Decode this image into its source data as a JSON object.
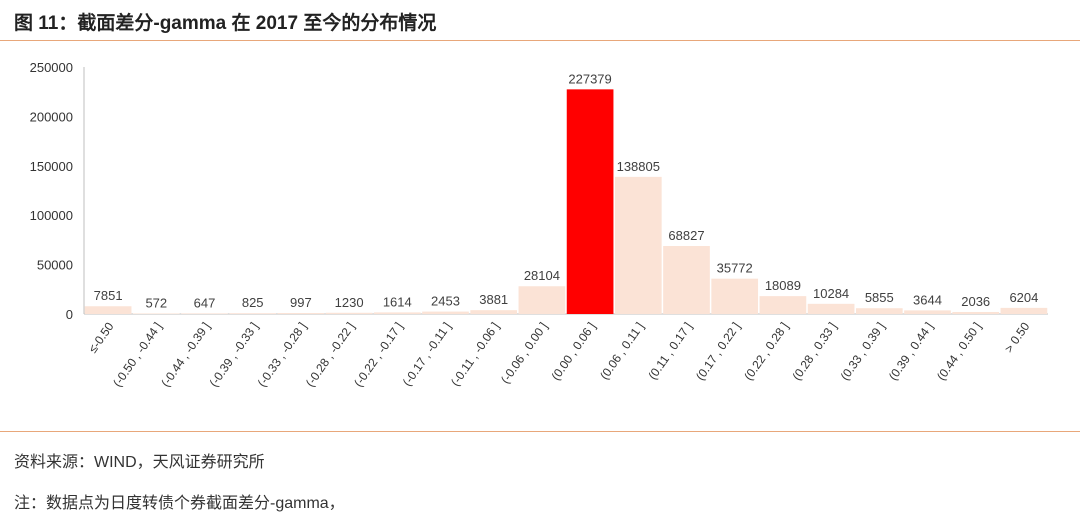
{
  "title": "图 11：截面差分-gamma 在 2017 至今的分布情况",
  "source_note": "资料来源：WIND，天风证券研究所",
  "remark_note": "注：数据点为日度转债个券截面差分-gamma，",
  "colors": {
    "bar": "#fbe3d6",
    "highlight": "#ff0000",
    "rule": "#e8a77a"
  },
  "chart_data": {
    "type": "bar",
    "title": "",
    "xlabel": "",
    "ylabel": "",
    "ylim": [
      0,
      250000
    ],
    "yticks": [
      "0",
      "50000",
      "100000",
      "150000",
      "200000",
      "250000"
    ],
    "grid": false,
    "highlight_index": 10,
    "categories": [
      "≤-0.50",
      "(-0.50 , -0.44 ]",
      "(-0.44 , -0.39 ]",
      "(-0.39 , -0.33 ]",
      "(-0.33 , -0.28 ]",
      "(-0.28 , -0.22 ]",
      "(-0.22 , -0.17 ]",
      "(-0.17 , -0.11 ]",
      "(-0.11 , -0.06 ]",
      "(-0.06 , 0.00 ]",
      "(0.00 , 0.06 ]",
      "(0.06 , 0.11 ]",
      "(0.11 , 0.17 ]",
      "(0.17 , 0.22 ]",
      "(0.22 , 0.28 ]",
      "(0.28 , 0.33 ]",
      "(0.33 , 0.39 ]",
      "(0.39 , 0.44 ]",
      "(0.44 , 0.50 ]",
      "> 0.50"
    ],
    "values": [
      7851,
      572,
      647,
      825,
      997,
      1230,
      1614,
      2453,
      3881,
      28104,
      227379,
      138805,
      68827,
      35772,
      18089,
      10284,
      5855,
      3644,
      2036,
      6204
    ]
  }
}
